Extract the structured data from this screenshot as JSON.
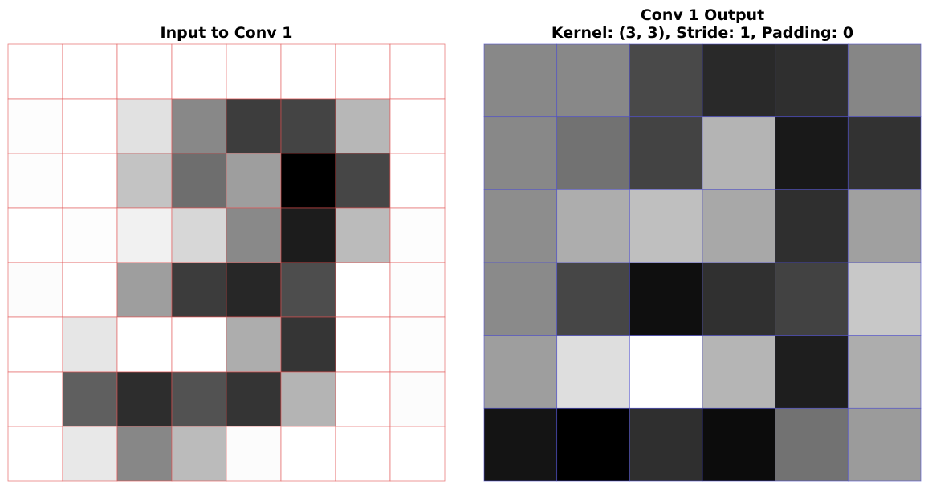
{
  "chart_data": [
    {
      "type": "heatmap",
      "title": "Input to Conv 1",
      "colormap": "gray",
      "grid_color": "#e05050",
      "rows": 8,
      "cols": 8,
      "values": [
        [
          255,
          255,
          255,
          255,
          255,
          255,
          255,
          255
        ],
        [
          253,
          255,
          225,
          136,
          61,
          68,
          183,
          255
        ],
        [
          253,
          255,
          195,
          110,
          158,
          0,
          70,
          255
        ],
        [
          255,
          253,
          241,
          215,
          137,
          28,
          187,
          253
        ],
        [
          252,
          255,
          158,
          60,
          39,
          77,
          255,
          253
        ],
        [
          255,
          230,
          255,
          255,
          173,
          53,
          255,
          253
        ],
        [
          255,
          95,
          45,
          82,
          52,
          180,
          255,
          252
        ],
        [
          255,
          232,
          135,
          187,
          252,
          255,
          255,
          255
        ]
      ]
    },
    {
      "type": "heatmap",
      "title": "Conv 1 Output\nKernel: (3, 3), Stride: 1, Padding: 0",
      "colormap": "gray",
      "grid_color": "#5050c8",
      "rows": 6,
      "cols": 6,
      "values": [
        [
          136,
          136,
          73,
          41,
          47,
          134
        ],
        [
          136,
          114,
          67,
          180,
          25,
          50
        ],
        [
          141,
          173,
          191,
          168,
          47,
          160
        ],
        [
          138,
          70,
          15,
          48,
          66,
          200
        ],
        [
          158,
          222,
          255,
          181,
          30,
          173
        ],
        [
          20,
          0,
          47,
          12,
          114,
          155
        ]
      ]
    }
  ]
}
